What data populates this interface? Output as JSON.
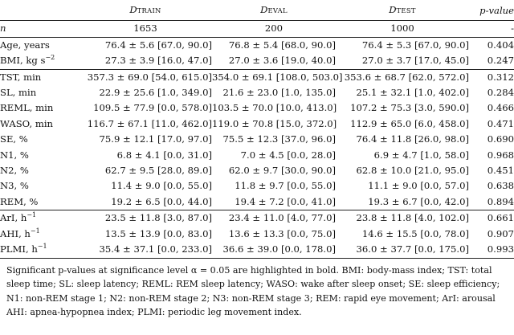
{
  "header": {
    "col_train": "D",
    "col_train_sub": "TRAIN",
    "col_eval": "D",
    "col_eval_sub": "EVAL",
    "col_test": "D",
    "col_test_sub": "TEST",
    "col_p": "p-value"
  },
  "n_row": {
    "label": "n",
    "train": "1653",
    "eval": "200",
    "test": "1000",
    "p": "-"
  },
  "groups": [
    {
      "rows": [
        {
          "label": "Age, years",
          "train": "76.4 ± 5.6 [67.0, 90.0]",
          "eval": "76.8 ± 5.4 [68.0, 90.0]",
          "test": "76.4 ± 5.3 [67.0, 90.0]",
          "p": "0.404"
        },
        {
          "label": "BMI, kg s",
          "label_sup": "−2",
          "train": "27.3 ± 3.9 [16.0, 47.0]",
          "eval": "27.0 ± 3.6 [19.0, 40.0]",
          "test": "27.0 ± 3.7 [17.0, 45.0]",
          "p": "0.247"
        }
      ]
    },
    {
      "rows": [
        {
          "label": "TST, min",
          "train": "357.3 ± 69.0 [54.0, 615.0]",
          "eval": "354.0 ± 69.1 [108.0, 503.0]",
          "test": "353.6 ± 68.7 [62.0, 572.0]",
          "p": "0.312"
        },
        {
          "label": "SL, min",
          "train": "22.9 ± 25.6 [1.0, 349.0]",
          "eval": "21.6 ± 23.0 [1.0, 135.0]",
          "test": "25.1 ± 32.1 [1.0, 402.0]",
          "p": "0.284"
        },
        {
          "label": "REML, min",
          "train": "109.5 ± 77.9 [0.0, 578.0]",
          "eval": "103.5 ± 70.0 [10.0, 413.0]",
          "test": "107.2 ± 75.3 [3.0, 590.0]",
          "p": "0.466"
        },
        {
          "label": "WASO, min",
          "train": "116.7 ± 67.1 [11.0, 462.0]",
          "eval": "119.0 ± 70.8 [15.0, 372.0]",
          "test": "112.9 ± 65.0 [6.0, 458.0]",
          "p": "0.471"
        },
        {
          "label": "SE, %",
          "train": "75.9 ± 12.1 [17.0, 97.0]",
          "eval": "75.5 ± 12.3 [37.0, 96.0]",
          "test": "76.4 ± 11.8 [26.0, 98.0]",
          "p": "0.690"
        },
        {
          "label": "N1, %",
          "train": "6.8 ± 4.1 [0.0, 31.0]",
          "eval": "7.0 ± 4.5 [0.0, 28.0]",
          "test": "6.9 ± 4.7 [1.0, 58.0]",
          "p": "0.968"
        },
        {
          "label": "N2, %",
          "train": "62.7 ± 9.5 [28.0, 89.0]",
          "eval": "62.0 ± 9.7 [30.0, 90.0]",
          "test": "62.8 ± 10.0 [21.0, 95.0]",
          "p": "0.451"
        },
        {
          "label": "N3, %",
          "train": "11.4 ± 9.0 [0.0, 55.0]",
          "eval": "11.8 ± 9.7 [0.0, 55.0]",
          "test": "11.1 ± 9.0 [0.0, 57.0]",
          "p": "0.638"
        },
        {
          "label": "REM, %",
          "train": "19.2 ± 6.5 [0.0, 44.0]",
          "eval": "19.4 ± 7.2 [0.0, 41.0]",
          "test": "19.3 ± 6.7 [0.0, 42.0]",
          "p": "0.894"
        }
      ]
    },
    {
      "rows": [
        {
          "label": "ArI, h",
          "label_sup": "−1",
          "train": "23.5 ± 11.8 [3.0, 87.0]",
          "eval": "23.4 ± 11.0 [4.0, 77.0]",
          "test": "23.8 ± 11.8 [4.0, 102.0]",
          "p": "0.661"
        },
        {
          "label": "AHI, h",
          "label_sup": "−1",
          "train": "13.5 ± 13.9 [0.0, 83.0]",
          "eval": "13.6 ± 13.3 [0.0, 75.0]",
          "test": "14.6 ± 15.5 [0.0, 78.0]",
          "p": "0.907"
        },
        {
          "label": "PLMI, h",
          "label_sup": "−1",
          "train": "35.4 ± 37.1 [0.0, 233.0]",
          "eval": "36.6 ± 39.0 [0.0, 178.0]",
          "test": "36.0 ± 37.7 [0.0, 175.0]",
          "p": "0.993"
        }
      ]
    }
  ],
  "note": {
    "lines": [
      "Significant p-values at significance level α = 0.05 are highlighted in bold. BMI: body-mass index; TST: total",
      "sleep time; SL: sleep latency; REML: REM sleep latency; WASO: wake after sleep onset; SE: sleep efficiency;",
      "N1: non-REM stage 1; N2: non-REM stage 2; N3: non-REM stage 3; REM: rapid eye movement; ArI: arousal",
      "AHI: apnea-hypopnea index; PLMI: periodic leg movement index."
    ]
  }
}
